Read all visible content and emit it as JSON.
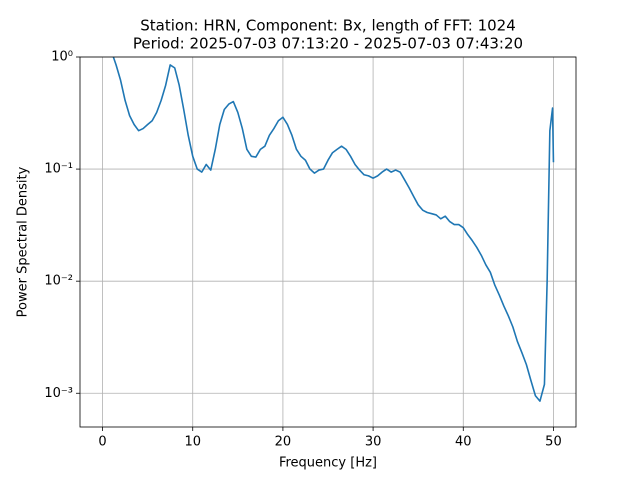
{
  "chart_data": {
    "type": "line",
    "title": "Station: HRN, Component: Bx, length of FFT: 1024",
    "subtitle": "Period: 2025-07-03 07:13:20 - 2025-07-03 07:43:20",
    "x_label": "Frequency [Hz]",
    "y_label": "Power Spectral Density",
    "log_y": true,
    "grid": true,
    "xlim": [
      -2.5,
      52.5
    ],
    "xticks": [
      0,
      10,
      20,
      30,
      40,
      50
    ],
    "ylim": [
      0.0005,
      1
    ],
    "yticks": [
      {
        "value": 1,
        "label": "10⁰"
      },
      {
        "value": 0.1,
        "label": "10⁻¹"
      },
      {
        "value": 0.01,
        "label": "10⁻²"
      },
      {
        "value": 0.001,
        "label": "10⁻³"
      }
    ],
    "x": [
      1.2,
      1.5,
      2,
      2.5,
      3,
      3.5,
      4,
      4.5,
      5,
      5.5,
      6,
      6.5,
      7,
      7.5,
      8,
      8.5,
      9,
      9.5,
      10,
      10.5,
      11,
      11.5,
      12,
      12.5,
      13,
      13.5,
      14,
      14.5,
      15,
      15.5,
      16,
      16.5,
      17,
      17.5,
      18,
      18.5,
      19,
      19.5,
      20,
      20.5,
      21,
      21.5,
      22,
      22.5,
      23,
      23.5,
      24,
      24.5,
      25,
      25.5,
      26,
      26.5,
      27,
      27.5,
      28,
      28.5,
      29,
      29.5,
      30,
      30.5,
      31,
      31.5,
      32,
      32.5,
      33,
      33.5,
      34,
      34.5,
      35,
      35.5,
      36,
      36.5,
      37,
      37.5,
      38,
      38.5,
      39,
      39.5,
      40,
      40.5,
      41,
      41.5,
      42,
      42.5,
      43,
      43.5,
      44,
      44.5,
      45,
      45.5,
      46,
      46.5,
      47,
      47.5,
      48,
      48.5,
      49,
      49.3,
      49.6,
      49.9,
      50
    ],
    "series": [
      {
        "name": "Bx",
        "color": "#1f77b4",
        "values": [
          1.0,
          0.85,
          0.62,
          0.41,
          0.3,
          0.25,
          0.22,
          0.23,
          0.25,
          0.27,
          0.32,
          0.41,
          0.56,
          0.85,
          0.8,
          0.56,
          0.34,
          0.2,
          0.13,
          0.1,
          0.094,
          0.11,
          0.098,
          0.15,
          0.25,
          0.34,
          0.38,
          0.4,
          0.32,
          0.23,
          0.15,
          0.13,
          0.128,
          0.15,
          0.16,
          0.2,
          0.23,
          0.27,
          0.29,
          0.25,
          0.2,
          0.15,
          0.13,
          0.12,
          0.1,
          0.092,
          0.098,
          0.1,
          0.12,
          0.14,
          0.15,
          0.16,
          0.15,
          0.13,
          0.11,
          0.098,
          0.089,
          0.087,
          0.083,
          0.087,
          0.094,
          0.1,
          0.094,
          0.098,
          0.094,
          0.08,
          0.068,
          0.057,
          0.048,
          0.043,
          0.041,
          0.04,
          0.039,
          0.036,
          0.038,
          0.034,
          0.032,
          0.032,
          0.03,
          0.026,
          0.023,
          0.02,
          0.017,
          0.014,
          0.012,
          0.0092,
          0.0075,
          0.006,
          0.0049,
          0.0039,
          0.0029,
          0.0023,
          0.0018,
          0.0013,
          0.00095,
          0.00085,
          0.0012,
          0.01,
          0.22,
          0.35,
          0.115
        ]
      }
    ]
  }
}
